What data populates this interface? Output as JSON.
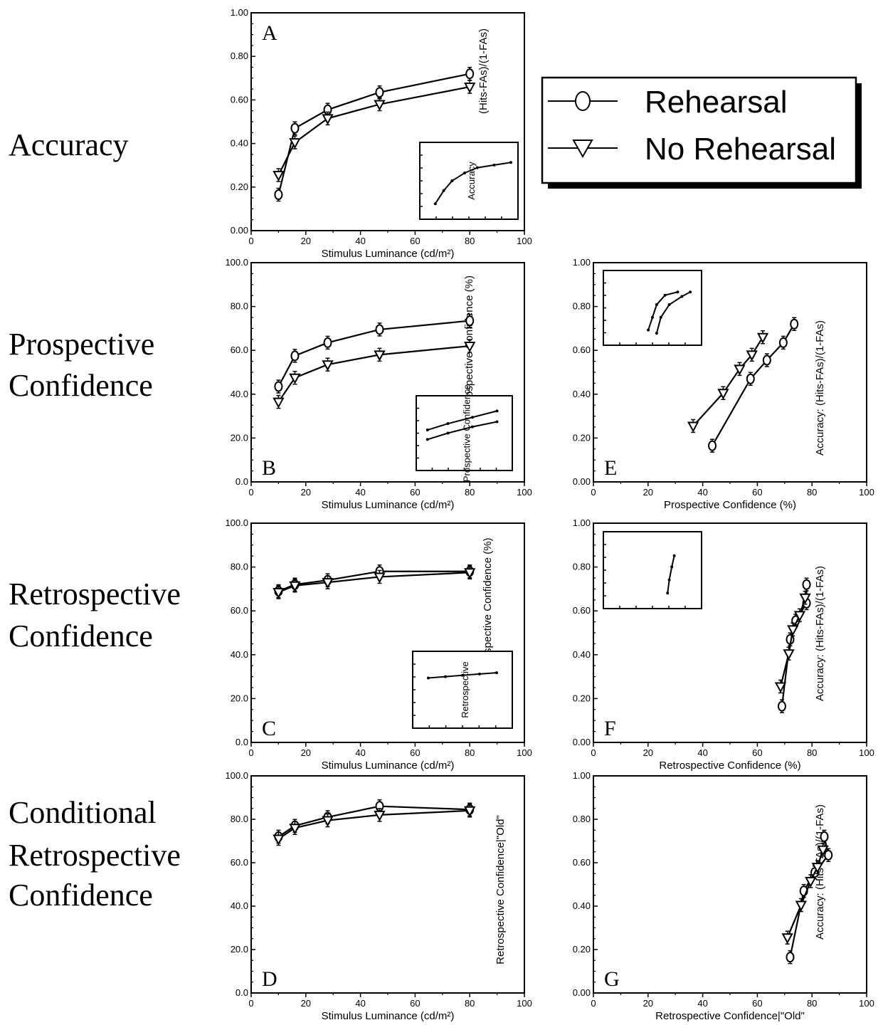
{
  "row_labels": [
    {
      "lines": [
        "Accuracy"
      ]
    },
    {
      "lines": [
        "Prospective",
        "Confidence"
      ]
    },
    {
      "lines": [
        "Retrospective",
        "Confidence"
      ]
    },
    {
      "lines": [
        "Conditional",
        "Retrospective",
        "Confidence"
      ]
    }
  ],
  "legend": {
    "items": [
      {
        "label": "Rehearsal",
        "marker": "circle"
      },
      {
        "label": "No Rehearsal",
        "marker": "triangle-down"
      }
    ]
  },
  "style": {
    "line_color": "#000000",
    "marker_fill": "#ffffff",
    "background": "#ffffff"
  },
  "chart_data": [
    {
      "id": "A",
      "panel_label": "A",
      "type": "line",
      "xlabel": "Stimulus Luminance (cd/m²)",
      "ylabel": "(Hits-FAs)/(1-FAs)",
      "xlim": [
        0,
        100
      ],
      "ylim": [
        0,
        1
      ],
      "xticks": [
        "0",
        "20",
        "40",
        "60",
        "80",
        "100"
      ],
      "yticks": [
        "0.00",
        "0.20",
        "0.40",
        "0.60",
        "0.80",
        "1.00"
      ],
      "series": [
        {
          "name": "Rehearsal",
          "marker": "circle",
          "x": [
            10,
            16,
            28,
            47,
            80
          ],
          "y": [
            0.165,
            0.47,
            0.555,
            0.635,
            0.72
          ]
        },
        {
          "name": "No Rehearsal",
          "marker": "triangle-down",
          "x": [
            10,
            16,
            28,
            47,
            80
          ],
          "y": [
            0.255,
            0.405,
            0.515,
            0.58,
            0.66
          ]
        }
      ],
      "inset": {
        "ylabel": "Accuracy",
        "x": [
          0.1,
          0.2,
          0.3,
          0.45,
          0.6,
          0.8,
          1.0
        ],
        "y": [
          0.15,
          0.35,
          0.5,
          0.62,
          0.7,
          0.74,
          0.78
        ]
      }
    },
    {
      "id": "B",
      "panel_label": "B",
      "type": "line",
      "xlabel": "Stimulus Luminance (cd/m²)",
      "ylabel": "Prospective Confidence (%)",
      "xlim": [
        0,
        100
      ],
      "ylim": [
        0,
        100
      ],
      "xticks": [
        "0",
        "20",
        "40",
        "60",
        "80",
        "100"
      ],
      "yticks": [
        "0.0",
        "20.0",
        "40.0",
        "60.0",
        "80.0",
        "100.0"
      ],
      "series": [
        {
          "name": "Rehearsal",
          "marker": "circle",
          "x": [
            10,
            16,
            28,
            47,
            80
          ],
          "y": [
            43.5,
            57.5,
            63.5,
            69.5,
            73.5
          ]
        },
        {
          "name": "No Rehearsal",
          "marker": "triangle-down",
          "x": [
            10,
            16,
            28,
            47,
            80
          ],
          "y": [
            36.5,
            47.5,
            53.5,
            58,
            62
          ]
        }
      ],
      "inset": {
        "ylabel": "Prospective Confidence",
        "x": [
          0.05,
          0.3,
          0.6,
          0.9
        ],
        "y": [
          0.55,
          0.65,
          0.75,
          0.85
        ],
        "y2": [
          0.4,
          0.5,
          0.6,
          0.68
        ]
      }
    },
    {
      "id": "C",
      "panel_label": "C",
      "type": "line",
      "xlabel": "Stimulus Luminance (cd/m²)",
      "ylabel": "Retrospective Confidence (%)",
      "xlim": [
        0,
        100
      ],
      "ylim": [
        0,
        100
      ],
      "xticks": [
        "0",
        "20",
        "40",
        "60",
        "80",
        "100"
      ],
      "yticks": [
        "0.0",
        "20.0",
        "40.0",
        "60.0",
        "80.0",
        "100.0"
      ],
      "series": [
        {
          "name": "Rehearsal",
          "marker": "circle",
          "x": [
            10,
            16,
            28,
            47,
            80
          ],
          "y": [
            69,
            72,
            74,
            78,
            78
          ]
        },
        {
          "name": "No Rehearsal",
          "marker": "triangle-down",
          "x": [
            10,
            16,
            28,
            47,
            80
          ],
          "y": [
            68.5,
            71.5,
            73,
            75.5,
            77.5
          ]
        }
      ],
      "inset": {
        "ylabel": "Retrospective",
        "x": [
          0.1,
          0.3,
          0.5,
          0.7,
          0.9
        ],
        "y": [
          0.68,
          0.7,
          0.72,
          0.74,
          0.76
        ]
      }
    },
    {
      "id": "D",
      "panel_label": "D",
      "type": "line",
      "xlabel": "Stimulus Luminance (cd/m²)",
      "ylabel": "Retrospective Confidence|\"Old\"",
      "xlim": [
        0,
        100
      ],
      "ylim": [
        0,
        100
      ],
      "xticks": [
        "0",
        "20",
        "40",
        "60",
        "80",
        "100"
      ],
      "yticks": [
        "0.0",
        "20.0",
        "40.0",
        "60.0",
        "80.0",
        "100.0"
      ],
      "series": [
        {
          "name": "Rehearsal",
          "marker": "circle",
          "x": [
            10,
            16,
            28,
            47,
            80
          ],
          "y": [
            72,
            77,
            81,
            86,
            84.5
          ]
        },
        {
          "name": "No Rehearsal",
          "marker": "triangle-down",
          "x": [
            10,
            16,
            28,
            47,
            80
          ],
          "y": [
            71,
            76,
            79.5,
            82,
            84
          ]
        }
      ]
    },
    {
      "id": "E",
      "panel_label": "E",
      "type": "line",
      "xlabel": "Prospective Confidence (%)",
      "ylabel": "Accuracy: (Hits-FAs)/(1-FAs)",
      "xlim": [
        0,
        100
      ],
      "ylim": [
        0,
        1
      ],
      "xticks": [
        "0",
        "20",
        "40",
        "60",
        "80",
        "100"
      ],
      "yticks": [
        "0.00",
        "0.20",
        "0.40",
        "0.60",
        "0.80",
        "1.00"
      ],
      "series": [
        {
          "name": "Rehearsal",
          "marker": "circle",
          "x": [
            43.5,
            57.5,
            63.5,
            69.5,
            73.5
          ],
          "y": [
            0.165,
            0.47,
            0.555,
            0.635,
            0.72
          ]
        },
        {
          "name": "No Rehearsal",
          "marker": "triangle-down",
          "x": [
            36.5,
            47.5,
            53.5,
            58,
            62
          ],
          "y": [
            0.255,
            0.405,
            0.515,
            0.58,
            0.66
          ]
        }
      ],
      "inset": {
        "x": [
          0.45,
          0.5,
          0.55,
          0.65,
          0.8
        ],
        "y": [
          0.15,
          0.35,
          0.55,
          0.7,
          0.75
        ],
        "x2": [
          0.55,
          0.6,
          0.7,
          0.85,
          0.95
        ],
        "y2": [
          0.1,
          0.35,
          0.55,
          0.68,
          0.75
        ]
      }
    },
    {
      "id": "F",
      "panel_label": "F",
      "type": "line",
      "xlabel": "Retrospective Confidence (%)",
      "ylabel": "Accuracy: (Hits-FAs)/(1-FAs)",
      "xlim": [
        0,
        100
      ],
      "ylim": [
        0,
        1
      ],
      "xticks": [
        "0",
        "20",
        "40",
        "60",
        "80",
        "100"
      ],
      "yticks": [
        "0.00",
        "0.20",
        "0.40",
        "0.60",
        "0.80",
        "1.00"
      ],
      "series": [
        {
          "name": "Rehearsal",
          "marker": "circle",
          "x": [
            69,
            72,
            74,
            78,
            78
          ],
          "y": [
            0.165,
            0.47,
            0.555,
            0.635,
            0.72
          ]
        },
        {
          "name": "No Rehearsal",
          "marker": "triangle-down",
          "x": [
            68.5,
            71.5,
            73,
            75.5,
            77.5
          ],
          "y": [
            0.255,
            0.405,
            0.515,
            0.58,
            0.66
          ]
        }
      ],
      "inset": {
        "x": [
          0.68,
          0.7,
          0.73,
          0.76
        ],
        "y": [
          0.15,
          0.35,
          0.55,
          0.72
        ]
      }
    },
    {
      "id": "G",
      "panel_label": "G",
      "type": "line",
      "xlabel": "Retrospective Confidence|\"Old\"",
      "ylabel": "Accuracy: (Hits-FAs)/(1-FAs)",
      "xlim": [
        0,
        100
      ],
      "ylim": [
        0,
        1
      ],
      "xticks": [
        "0",
        "20",
        "40",
        "60",
        "80",
        "100"
      ],
      "yticks": [
        "0.00",
        "0.20",
        "0.40",
        "0.60",
        "0.80",
        "1.00"
      ],
      "series": [
        {
          "name": "Rehearsal",
          "marker": "circle",
          "x": [
            72,
            77,
            81,
            86,
            84.5
          ],
          "y": [
            0.165,
            0.47,
            0.555,
            0.635,
            0.72
          ]
        },
        {
          "name": "No Rehearsal",
          "marker": "triangle-down",
          "x": [
            71,
            76,
            79.5,
            82,
            84
          ],
          "y": [
            0.255,
            0.405,
            0.515,
            0.58,
            0.66
          ]
        }
      ]
    }
  ]
}
